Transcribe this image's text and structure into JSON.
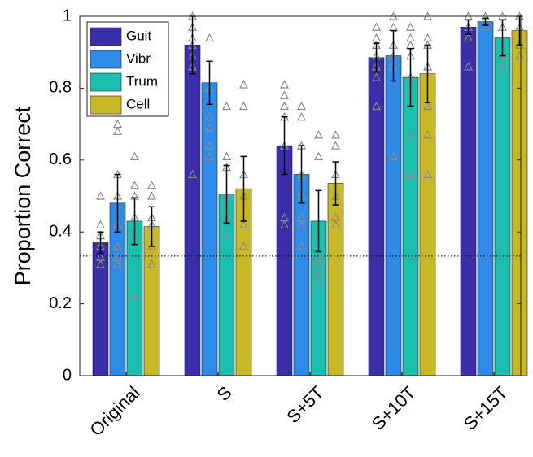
{
  "chart_data": {
    "type": "bar",
    "ylabel": "Proportion Correct",
    "categories": [
      "Original",
      "S",
      "S+5T",
      "S+10T",
      "S+15T"
    ],
    "series": [
      {
        "name": "Guit",
        "color": "#3a2fa8",
        "values": [
          0.37,
          0.92,
          0.64,
          0.885,
          0.97
        ],
        "errors": [
          0.03,
          0.08,
          0.08,
          0.04,
          0.02
        ],
        "points": [
          [
            0.5,
            0.42,
            0.39,
            0.36,
            0.33,
            0.31
          ],
          [
            1.0,
            0.97,
            0.94,
            0.92,
            0.89,
            0.86,
            0.56
          ],
          [
            0.81,
            0.78,
            0.75,
            0.72,
            0.64,
            0.44,
            0.42
          ],
          [
            0.97,
            0.94,
            0.92,
            0.89,
            0.86,
            0.83,
            0.75
          ],
          [
            1.0,
            0.97,
            0.94,
            0.86
          ]
        ]
      },
      {
        "name": "Vibr",
        "color": "#2e8be8",
        "values": [
          0.48,
          0.815,
          0.56,
          0.89,
          0.985
        ],
        "errors": [
          0.08,
          0.06,
          0.08,
          0.07,
          0.01
        ],
        "points": [
          [
            0.7,
            0.68,
            0.56,
            0.5,
            0.42,
            0.36,
            0.33,
            0.31
          ],
          [
            0.94,
            0.8,
            0.72,
            0.69,
            0.64,
            0.61
          ],
          [
            0.75,
            0.72,
            0.64,
            0.56,
            0.5,
            0.44,
            0.42,
            0.36
          ],
          [
            1.0,
            0.97,
            0.92,
            0.89,
            0.86,
            0.61
          ],
          [
            1.0,
            0.97
          ]
        ]
      },
      {
        "name": "Trum",
        "color": "#1abfb0",
        "values": [
          0.43,
          0.505,
          0.43,
          0.83,
          0.94
        ],
        "errors": [
          0.065,
          0.08,
          0.085,
          0.08,
          0.05
        ],
        "points": [
          [
            0.61,
            0.53,
            0.5,
            0.44,
            0.39,
            0.22
          ],
          [
            0.75,
            0.61,
            0.58,
            0.5,
            0.44,
            0.39
          ],
          [
            0.67,
            0.61,
            0.39,
            0.33,
            0.31,
            0.28,
            0.25
          ],
          [
            0.97,
            0.94,
            0.92,
            0.89,
            0.83,
            0.67,
            0.56
          ],
          [
            1.0,
            0.97,
            0.92,
            0.89,
            0.86
          ]
        ]
      },
      {
        "name": "Cell",
        "color": "#c9b826",
        "values": [
          0.415,
          0.52,
          0.535,
          0.84,
          0.96
        ],
        "errors": [
          0.055,
          0.09,
          0.06,
          0.08,
          0.04
        ],
        "points": [
          [
            0.53,
            0.5,
            0.44,
            0.42,
            0.36,
            0.31
          ],
          [
            0.81,
            0.75,
            0.56,
            0.5,
            0.42,
            0.36
          ],
          [
            0.67,
            0.64,
            0.56,
            0.5,
            0.44,
            0.42
          ],
          [
            1.0,
            0.94,
            0.92,
            0.86,
            0.75,
            0.67,
            0.56
          ],
          [
            1.0,
            0.97,
            0.92,
            0.89
          ]
        ]
      }
    ],
    "ylim": [
      0,
      1
    ],
    "yticks": [
      0,
      0.2,
      0.4,
      0.6,
      0.8,
      1
    ],
    "chance_level": 0.333,
    "legend": "upper left"
  }
}
